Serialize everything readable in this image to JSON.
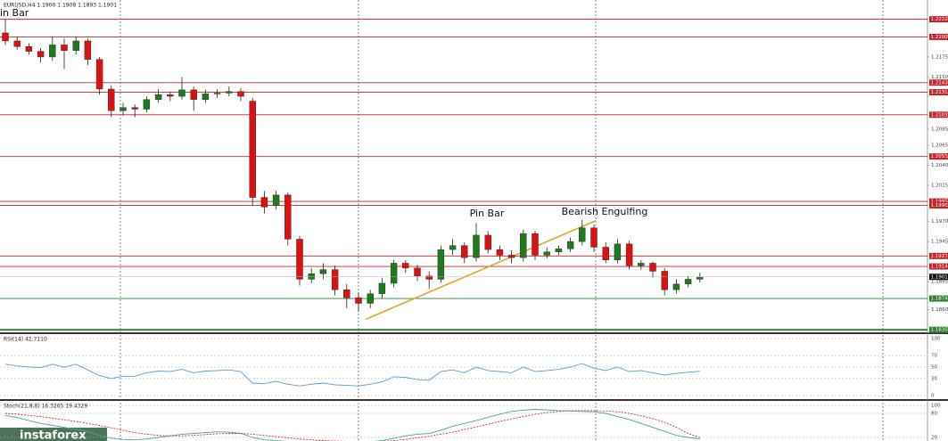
{
  "chart_data": [
    {
      "type": "candlestick",
      "title": "EURUSD,H4  1.1900 1.1908 1.1893 1.1901",
      "corner_text": "in Bar",
      "annotations": [
        "Pin Bar",
        "Bearish Engulfing"
      ],
      "watermark": "instaforex",
      "up_color": "#1f7a1f",
      "down_color": "#dd1111",
      "ylim": [
        1.1833,
        1.2246
      ],
      "yticks": [
        1.2175,
        {
          "value": 1.215,
          "label": "1.2150"
        },
        1.2085,
        1.2065,
        {
          "value": 1.204,
          "label": "1.2040"
        },
        1.2015,
        {
          "value": 1.197,
          "label": "1.1970"
        },
        1.1945,
        1.1895,
        {
          "value": 1.186,
          "label": "1.1860"
        }
      ],
      "levels": [
        1.2222,
        {
          "value": 1.22,
          "label": "1.2200"
        },
        1.2143,
        1.2131,
        1.2103,
        1.2051,
        1.1995,
        {
          "value": 1.199,
          "label": "1.1990"
        },
        1.1927,
        1.1914,
        1.1874,
        1.1835
      ],
      "level_colors": [
        "#c0272d",
        "#c0272d",
        "#c0272d",
        "#c0272d",
        "#c0272d",
        "#c0272d",
        "#c0272d",
        "#c0272d",
        "#c0272d",
        "#c0272d",
        "#2e7d32",
        "#2e7d32"
      ],
      "last": 1.1901,
      "trendline": [
        1.1848,
        1.1971
      ],
      "trendline_color": "#e0a020",
      "open": [
        1.2205,
        1.2195,
        1.2188,
        1.2182,
        1.2175,
        1.219,
        1.2183,
        1.2195,
        1.2172,
        1.2135,
        1.2108,
        1.2112,
        1.211,
        1.2122,
        1.2128,
        1.2126,
        1.2134,
        1.2122,
        1.2129,
        1.213,
        1.2132,
        1.212,
        1.2,
        1.199,
        1.2003,
        1.1948,
        1.1898,
        1.1905,
        1.191,
        1.1885,
        1.1875,
        1.1868,
        1.188,
        1.1893,
        1.1918,
        1.1912,
        1.1902,
        1.1898,
        1.1935,
        1.194,
        1.1925,
        1.1953,
        1.1935,
        1.1928,
        1.1925,
        1.1955,
        1.1928,
        1.1932,
        1.1936,
        1.1945,
        1.1962,
        1.1938,
        1.1922,
        1.1942,
        1.1915,
        1.1918,
        1.1908,
        1.1885,
        1.1892,
        1.1898
      ],
      "high": [
        1.2222,
        1.22,
        1.2192,
        1.2186,
        1.22,
        1.2198,
        1.22,
        1.2198,
        1.2175,
        1.214,
        1.2118,
        1.2116,
        1.2126,
        1.2135,
        1.2132,
        1.215,
        1.2138,
        1.2134,
        1.2135,
        1.2138,
        1.2136,
        1.2124,
        1.2008,
        1.2008,
        1.2006,
        1.1952,
        1.1912,
        1.1918,
        1.1915,
        1.1892,
        1.1882,
        1.1885,
        1.19,
        1.1922,
        1.1922,
        1.1916,
        1.1908,
        1.194,
        1.1948,
        1.1944,
        1.1968,
        1.1958,
        1.194,
        1.1934,
        1.196,
        1.1958,
        1.1938,
        1.194,
        1.195,
        1.1972,
        1.1966,
        1.1944,
        1.1948,
        1.1946,
        1.1922,
        1.192,
        1.1912,
        1.1898,
        1.1902,
        1.1906
      ],
      "low": [
        1.219,
        1.2184,
        1.2178,
        1.2168,
        1.217,
        1.216,
        1.2178,
        1.2165,
        1.2128,
        1.21,
        1.2102,
        1.21,
        1.2106,
        1.2118,
        1.212,
        1.2122,
        1.2108,
        1.2118,
        1.2124,
        1.2126,
        1.212,
        1.199,
        1.198,
        1.1985,
        1.194,
        1.189,
        1.1893,
        1.1898,
        1.1878,
        1.1862,
        1.1858,
        1.1862,
        1.1874,
        1.1888,
        1.1906,
        1.1896,
        1.1886,
        1.1894,
        1.1928,
        1.1918,
        1.192,
        1.193,
        1.1922,
        1.1918,
        1.192,
        1.1922,
        1.1924,
        1.1928,
        1.1932,
        1.194,
        1.1932,
        1.1918,
        1.1918,
        1.191,
        1.191,
        1.19,
        1.1878,
        1.188,
        1.1888,
        1.1894
      ],
      "close": [
        1.2195,
        1.2188,
        1.2182,
        1.2175,
        1.219,
        1.2183,
        1.2195,
        1.2172,
        1.2135,
        1.2108,
        1.2112,
        1.211,
        1.2122,
        1.2128,
        1.2126,
        1.2134,
        1.2122,
        1.2129,
        1.213,
        1.2132,
        1.2126,
        1.2,
        1.1988,
        1.2003,
        1.1948,
        1.1898,
        1.1905,
        1.191,
        1.1885,
        1.1875,
        1.1868,
        1.188,
        1.1893,
        1.1918,
        1.1912,
        1.1902,
        1.1898,
        1.1935,
        1.194,
        1.1925,
        1.1953,
        1.1935,
        1.1928,
        1.1925,
        1.1955,
        1.1928,
        1.1932,
        1.1936,
        1.1945,
        1.1962,
        1.1938,
        1.1922,
        1.1942,
        1.1915,
        1.1918,
        1.1908,
        1.1885,
        1.1892,
        1.1898,
        1.1901
      ]
    },
    {
      "type": "line",
      "title": "RSI(14) 42.7110",
      "ylim": [
        -6,
        106
      ],
      "yticks": [
        100,
        70,
        50,
        30,
        0
      ],
      "grid": true,
      "series": [
        {
          "color": "#5b9bd5",
          "values": [
            55,
            52,
            50,
            49,
            55,
            50,
            55,
            45,
            35,
            30,
            34,
            34,
            40,
            43,
            42,
            46,
            40,
            43,
            44,
            45,
            42,
            22,
            21,
            25,
            20,
            17,
            20,
            22,
            19,
            18,
            17,
            20,
            24,
            33,
            32,
            28,
            27,
            42,
            45,
            40,
            50,
            44,
            42,
            40,
            50,
            42,
            44,
            46,
            50,
            56,
            48,
            44,
            50,
            42,
            44,
            40,
            36,
            39,
            41,
            42.711
          ]
        }
      ]
    },
    {
      "type": "line",
      "title": "Stoch(21,8,8) 16.3265 19.4329",
      "ylim": [
        11,
        109
      ],
      "yticks": [
        100,
        80,
        20
      ],
      "grid": true,
      "series": [
        {
          "color": "#4aa3a3",
          "values": [
            75,
            70,
            62,
            55,
            50,
            45,
            40,
            35,
            25,
            18,
            15,
            14,
            16,
            20,
            24,
            28,
            30,
            32,
            34,
            33,
            30,
            20,
            14,
            12,
            10,
            9,
            10,
            11,
            10,
            9,
            8,
            9,
            12,
            18,
            24,
            28,
            30,
            38,
            48,
            55,
            62,
            70,
            78,
            85,
            88,
            90,
            89,
            87,
            86,
            85,
            84,
            80,
            72,
            65,
            55,
            45,
            35,
            25,
            20,
            16.3265
          ]
        },
        {
          "color": "#c0392b",
          "dash": true,
          "values": [
            80,
            78,
            75,
            72,
            68,
            64,
            60,
            55,
            50,
            44,
            38,
            32,
            28,
            25,
            24,
            24,
            25,
            27,
            29,
            30,
            30,
            28,
            25,
            22,
            19,
            16,
            14,
            12,
            11,
            10,
            10,
            10,
            10,
            12,
            15,
            19,
            23,
            28,
            33,
            40,
            46,
            53,
            60,
            66,
            72,
            78,
            82,
            85,
            87,
            87,
            87,
            86,
            84,
            80,
            74,
            67,
            58,
            45,
            30,
            19.4329
          ]
        }
      ]
    }
  ]
}
